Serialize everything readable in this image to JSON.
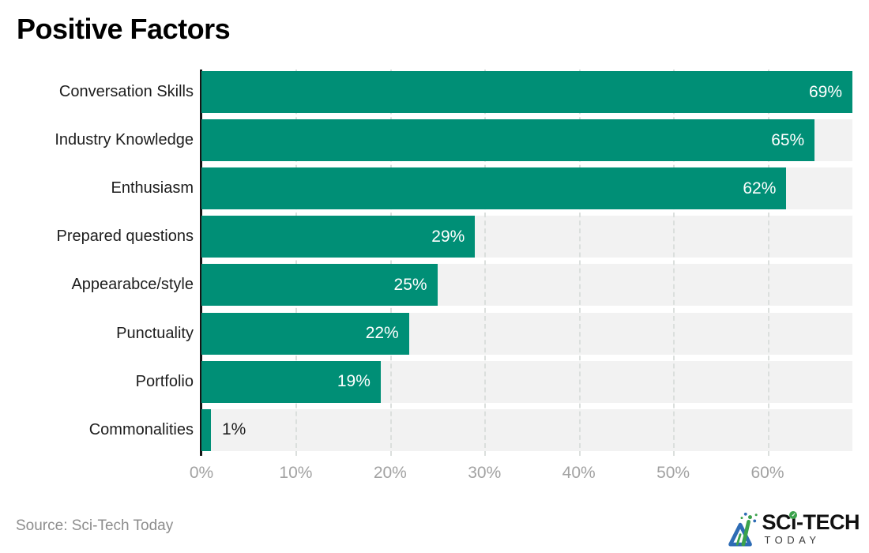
{
  "title": "Positive Factors",
  "source": "Source: Sci-Tech Today",
  "logo": {
    "brand": "SCI-TECH",
    "brand_part_left": "SC",
    "brand_part_i": "ı",
    "brand_part_right": "-TECH",
    "brand_check": "✓",
    "brand_sub": "TODAY",
    "icon": "sci-tech-triangle-logo",
    "blue": "#2e6cb5",
    "green": "#3ba24c"
  },
  "chart_data": {
    "type": "bar",
    "orientation": "horizontal",
    "title": "Positive Factors",
    "categories": [
      "Conversation Skills",
      "Industry Knowledge",
      "Enthusiasm",
      "Prepared questions",
      "Appearabce/style",
      "Punctuality",
      "Portfolio",
      "Commonalities"
    ],
    "values": [
      69,
      65,
      62,
      29,
      25,
      22,
      19,
      1
    ],
    "value_suffix": "%",
    "xlabel": "",
    "ylabel": "",
    "xlim": [
      0,
      69
    ],
    "xtick_values": [
      0,
      10,
      20,
      30,
      40,
      50,
      60
    ],
    "xtick_labels": [
      "0%",
      "10%",
      "20%",
      "30%",
      "40%",
      "50%",
      "60%"
    ],
    "grid": true,
    "legend": false,
    "bar_color": "#008f76",
    "track_color": "#f2f2f2",
    "inside_label_color": "#ffffff",
    "outside_label_color": "#1f1f1f",
    "outside_label_threshold": 5
  }
}
